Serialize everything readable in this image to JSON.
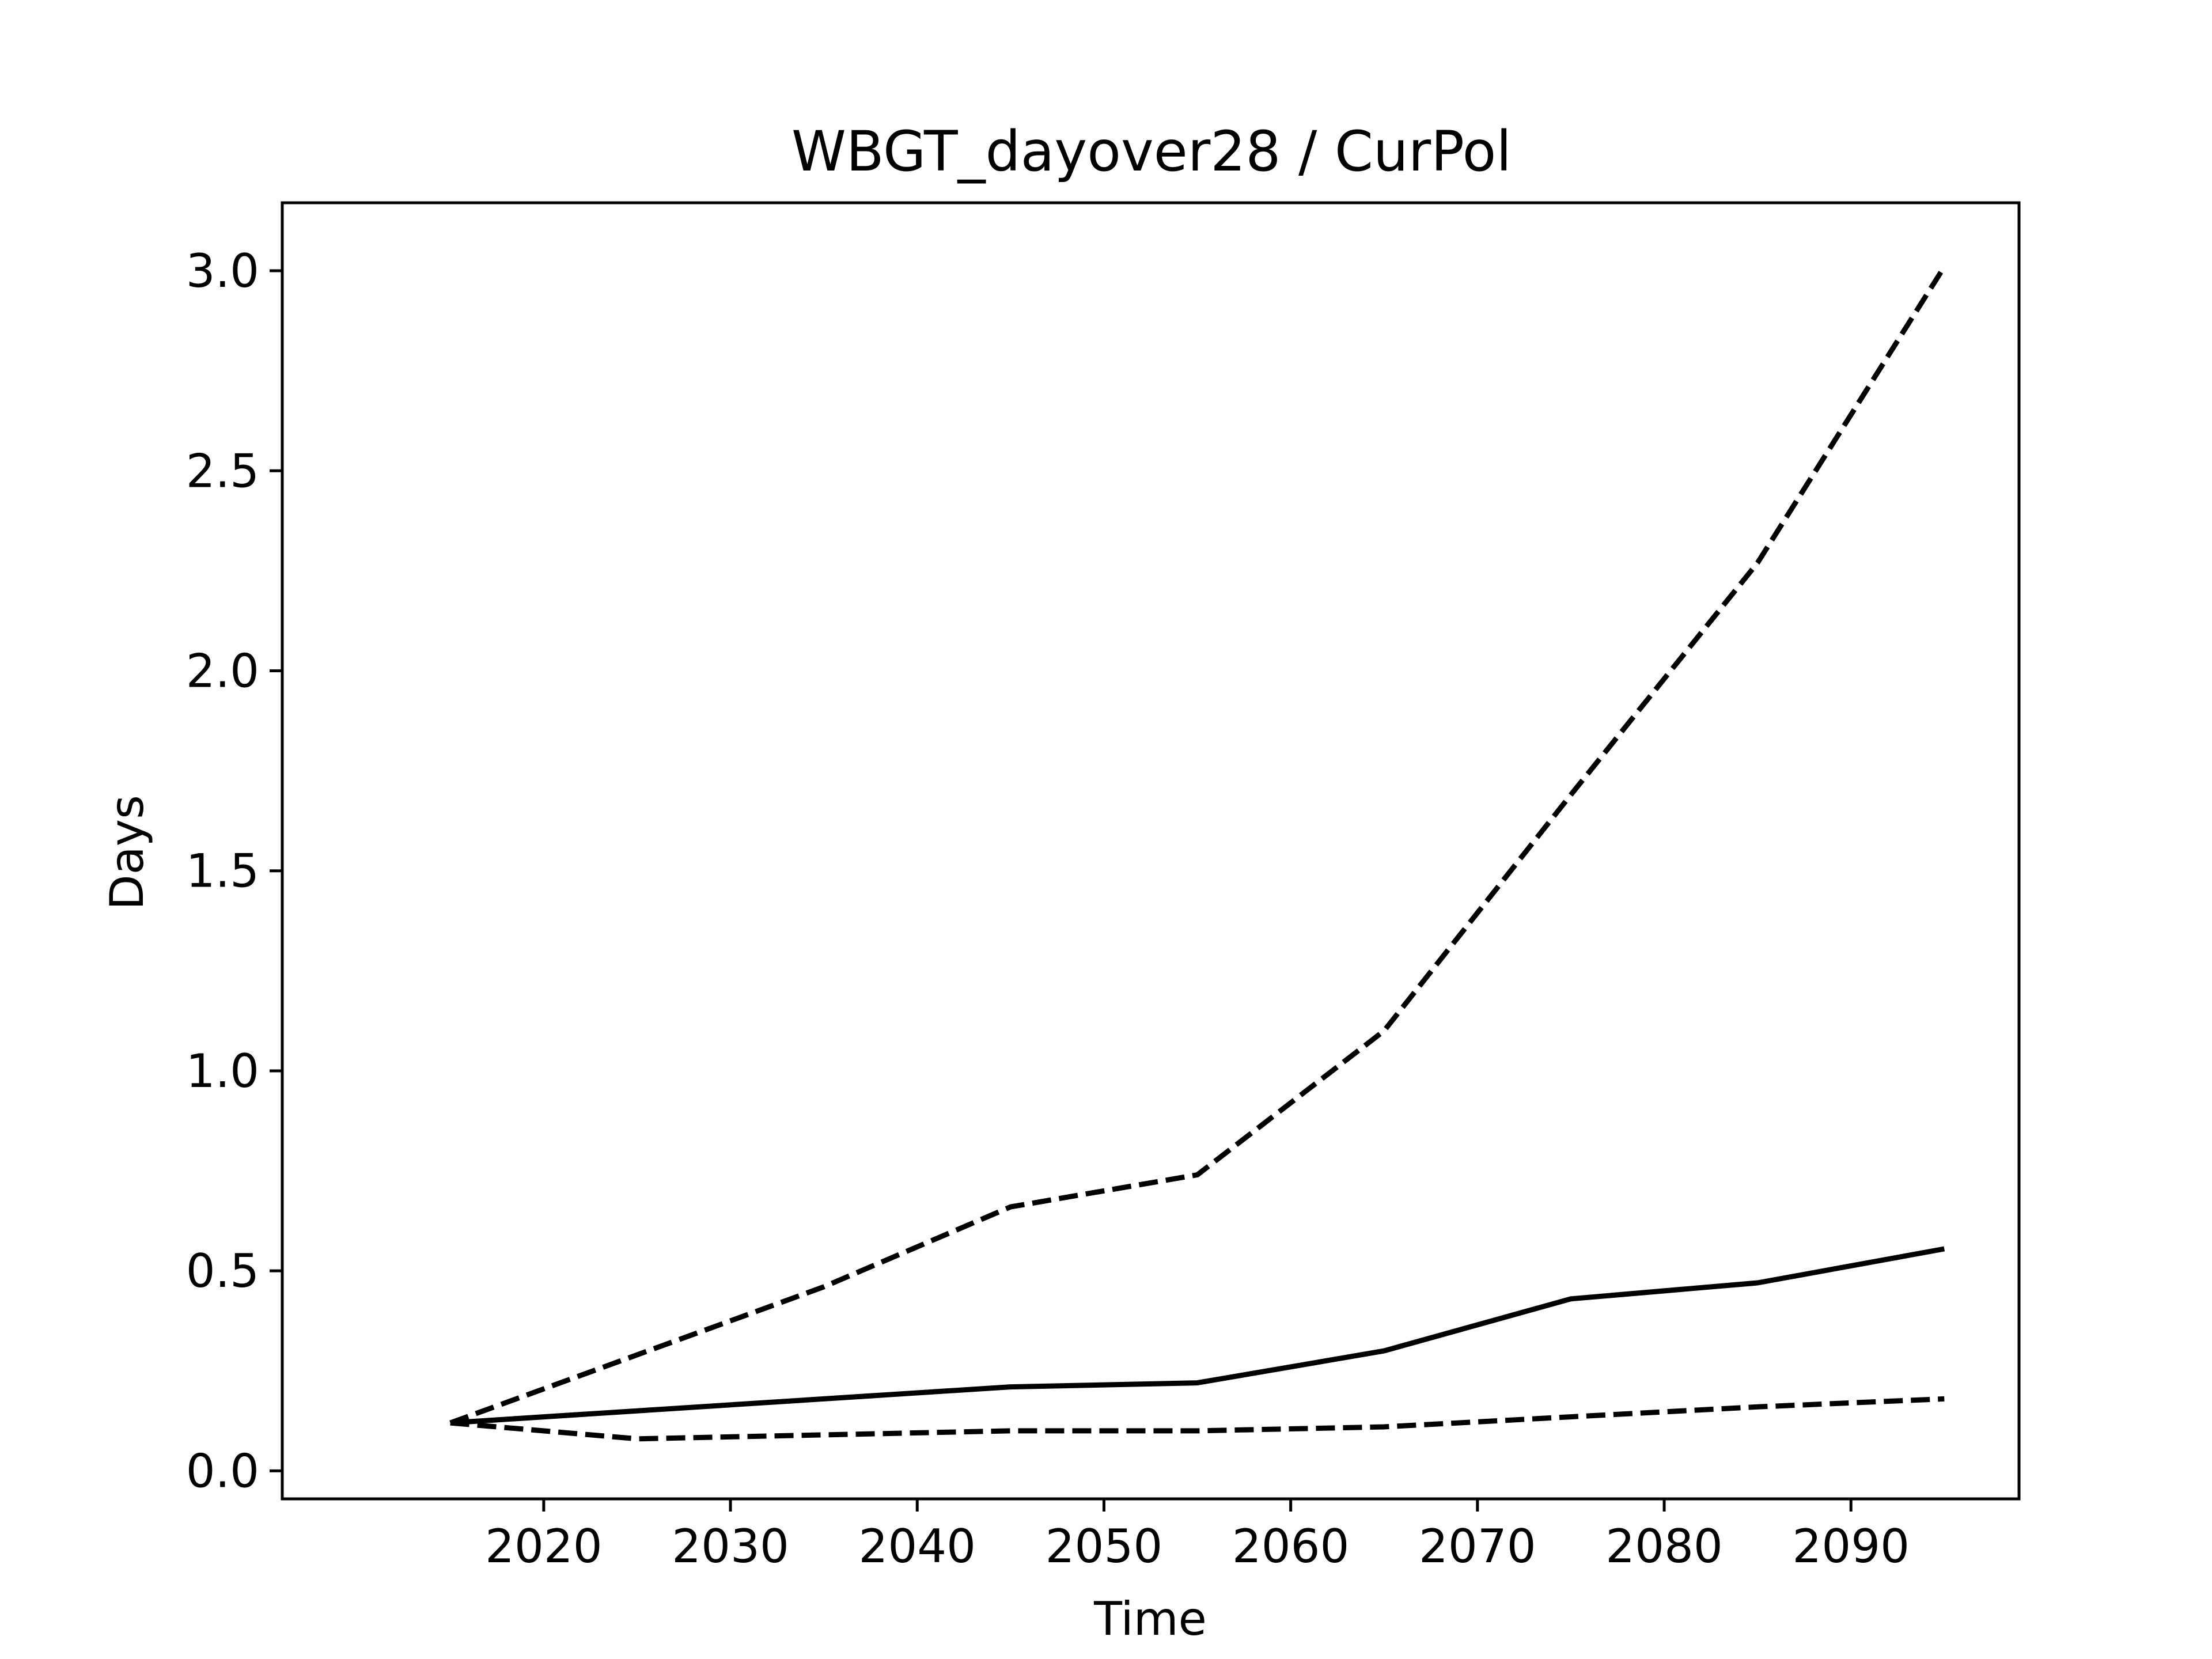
{
  "chart_data": {
    "type": "line",
    "title": "WBGT_dayover28 / CurPol",
    "xlabel": "Time",
    "ylabel": "Days",
    "x": [
      2015,
      2025,
      2035,
      2045,
      2055,
      2065,
      2075,
      2085,
      2095
    ],
    "xlim": [
      2006,
      2099
    ],
    "ylim": [
      -0.07,
      3.17
    ],
    "xticks": [
      2020,
      2030,
      2040,
      2050,
      2060,
      2070,
      2080,
      2090
    ],
    "xtick_labels": [
      "2020",
      "2030",
      "2040",
      "2050",
      "2060",
      "2070",
      "2080",
      "2090"
    ],
    "yticks": [
      0.0,
      0.5,
      1.0,
      1.5,
      2.0,
      2.5,
      3.0
    ],
    "ytick_labels": [
      "0.0",
      "0.5",
      "1.0",
      "1.5",
      "2.0",
      "2.5",
      "3.0"
    ],
    "grid": false,
    "series": [
      {
        "style": "dashed",
        "color": "#000000",
        "values": [
          0.12,
          0.29,
          0.46,
          0.66,
          0.74,
          1.1,
          1.69,
          2.27,
          3.01
        ]
      },
      {
        "style": "solid",
        "color": "#000000",
        "values": [
          0.12,
          0.15,
          0.18,
          0.21,
          0.22,
          0.3,
          0.43,
          0.47,
          0.555
        ]
      },
      {
        "style": "dashed",
        "color": "#000000",
        "values": [
          0.12,
          0.08,
          0.09,
          0.1,
          0.1,
          0.11,
          0.135,
          0.16,
          0.18
        ]
      }
    ]
  }
}
